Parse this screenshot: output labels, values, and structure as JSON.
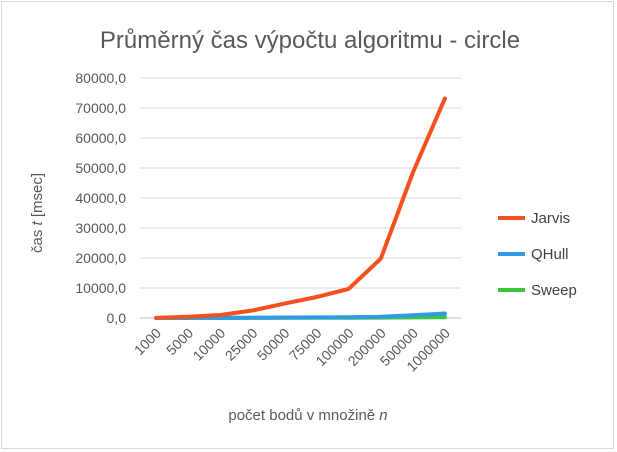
{
  "chart_data": {
    "type": "line",
    "title": "Průměrný čas výpočtu algoritmu - circle",
    "xlabel_prefix": "počet bodů v množině ",
    "xlabel_var": "n",
    "ylabel_prefix": "čas ",
    "ylabel_var": "t",
    "ylabel_suffix": " [msec]",
    "categories": [
      "1000",
      "5000",
      "10000",
      "25000",
      "50000",
      "75000",
      "100000",
      "200000",
      "500000",
      "1000000"
    ],
    "ylim": [
      0,
      80000
    ],
    "yticks": [
      0,
      10000,
      20000,
      30000,
      40000,
      50000,
      60000,
      70000,
      80000
    ],
    "ytick_labels": [
      "0,0",
      "10000,0",
      "20000,0",
      "30000,0",
      "40000,0",
      "50000,0",
      "60000,0",
      "70000,0",
      "80000,0"
    ],
    "legend_position": "right",
    "grid": true,
    "series": [
      {
        "name": "Jarvis",
        "color": "#f4511e",
        "values": [
          50,
          400,
          1000,
          2500,
          4800,
          7000,
          9700,
          19800,
          48500,
          73200
        ]
      },
      {
        "name": "QHull",
        "color": "#2f9be8",
        "values": [
          5,
          20,
          40,
          80,
          150,
          200,
          250,
          400,
          900,
          1500
        ]
      },
      {
        "name": "Sweep",
        "color": "#3cc43c",
        "values": [
          3,
          10,
          20,
          40,
          60,
          80,
          100,
          150,
          200,
          250
        ]
      }
    ]
  }
}
